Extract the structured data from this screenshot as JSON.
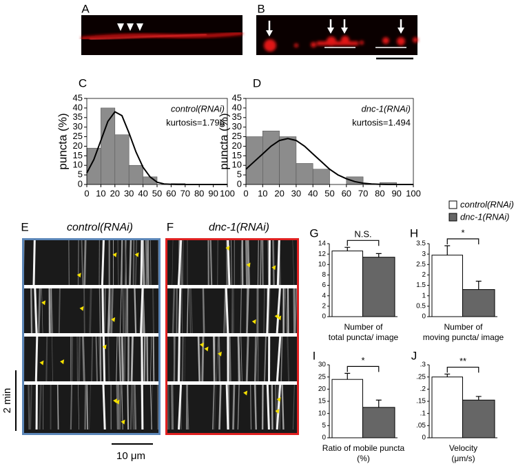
{
  "panel_labels": [
    "A",
    "B",
    "C",
    "D",
    "E",
    "F",
    "G",
    "H",
    "I",
    "J"
  ],
  "kymograph": {
    "titles": [
      "control(RNAi)",
      "dnc-1(RNAi)"
    ],
    "time_scale": "2 min",
    "length_scale": "10 μm"
  },
  "legend": {
    "series": [
      {
        "name": "control(RNAi)",
        "color": "#ffffff"
      },
      {
        "name": "dnc-1(RNAi)",
        "color": "#666666"
      }
    ]
  },
  "chart_data": [
    {
      "type": "histogram",
      "ylabel": "puncta (%)",
      "annotations": [
        "control(RNAi)",
        "kurtosis=1.796"
      ],
      "bins": [
        0,
        10,
        20,
        30,
        40,
        50,
        60,
        70,
        80,
        90,
        100
      ],
      "values": [
        19,
        40,
        26,
        10,
        4,
        0,
        0.5,
        0,
        0,
        0
      ],
      "color": "#8c8c8c",
      "curve": {
        "x": [
          0,
          5,
          10,
          15,
          20,
          25,
          30,
          35,
          40,
          45,
          50,
          55,
          60,
          65,
          70,
          80,
          90,
          100
        ],
        "y": [
          6,
          13,
          23,
          33,
          38,
          36,
          27,
          17,
          9,
          4,
          1.2,
          0.3,
          0.1,
          0,
          0,
          0,
          0,
          0
        ]
      },
      "xlim": [
        0,
        100
      ],
      "xticks": [
        0,
        10,
        20,
        30,
        40,
        50,
        60,
        70,
        80,
        90,
        100
      ],
      "ylim": [
        0,
        45
      ],
      "yticks": [
        0,
        5,
        10,
        15,
        20,
        25,
        30,
        35,
        40,
        45
      ]
    },
    {
      "type": "histogram",
      "ylabel": "puncta (%)",
      "annotations": [
        "dnc-1(RNAi)",
        "kurtosis=1.494"
      ],
      "bins": [
        0,
        10,
        20,
        30,
        40,
        50,
        60,
        70,
        80,
        90,
        100
      ],
      "values": [
        25,
        28,
        25,
        11,
        8,
        0,
        4,
        0,
        1,
        0
      ],
      "color": "#8c8c8c",
      "curve": {
        "x": [
          0,
          5,
          10,
          15,
          20,
          25,
          30,
          35,
          40,
          45,
          50,
          55,
          60,
          65,
          70,
          75,
          80,
          85,
          90,
          100
        ],
        "y": [
          8,
          12,
          16,
          20,
          23,
          24,
          23,
          20,
          16,
          12,
          8,
          5,
          3,
          1.5,
          0.7,
          0.3,
          0.1,
          0,
          0,
          0
        ]
      },
      "xlim": [
        0,
        100
      ],
      "xticks": [
        0,
        10,
        20,
        30,
        40,
        50,
        60,
        70,
        80,
        90,
        100
      ],
      "ylim": [
        0,
        45
      ],
      "yticks": [
        0,
        5,
        10,
        15,
        20,
        25,
        30,
        35,
        40,
        45
      ]
    },
    {
      "type": "bar",
      "values": [
        12.6,
        11.4
      ],
      "errors": [
        0.7,
        0.7
      ],
      "significance": "N.S.",
      "xlabel": [
        "Number of",
        "total puncta/ image"
      ],
      "ylim": [
        0,
        14
      ],
      "yticks": [
        0,
        2,
        4,
        6,
        8,
        10,
        12,
        14
      ]
    },
    {
      "type": "bar",
      "values": [
        2.95,
        1.3
      ],
      "errors": [
        0.45,
        0.4
      ],
      "significance": "*",
      "xlabel": [
        "Number of",
        "moving puncta/ image"
      ],
      "ylim": [
        0,
        3.5
      ],
      "yticks": [
        0,
        0.5,
        1,
        1.5,
        2,
        2.5,
        3,
        3.5
      ]
    },
    {
      "type": "bar",
      "values": [
        24,
        12.5
      ],
      "errors": [
        2.5,
        3
      ],
      "significance": "*",
      "xlabel": [
        "Ratio of mobile puncta",
        "(%)"
      ],
      "ylim": [
        0,
        30
      ],
      "yticks": [
        0,
        5,
        10,
        15,
        20,
        25,
        30
      ]
    },
    {
      "type": "bar",
      "values": [
        0.25,
        0.155
      ],
      "errors": [
        0.012,
        0.015
      ],
      "significance": "**",
      "xlabel": [
        "Velocity",
        "(μm/s)"
      ],
      "ylim": [
        0,
        0.3
      ],
      "yticks": [
        0,
        {
          "value": 0.05,
          "label": ".05"
        },
        {
          "value": 0.1,
          "label": ".1"
        },
        {
          "value": 0.15,
          "label": ".15"
        },
        {
          "value": 0.2,
          "label": ".2"
        },
        {
          "value": 0.25,
          "label": ".25"
        },
        {
          "value": 0.3,
          "label": ".3"
        }
      ]
    }
  ]
}
